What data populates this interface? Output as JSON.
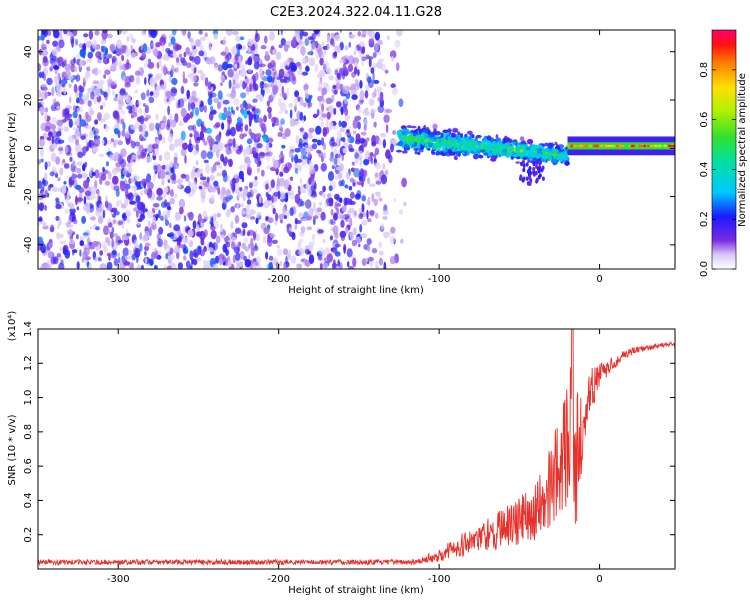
{
  "title": "C2E3.2024.322.04.11.G28",
  "colors": {
    "snr_line": "#e8302a",
    "spectrogram_base": "#7a2be0"
  },
  "chart_data": [
    {
      "type": "heatmap",
      "xlabel": "Height of straight line (km)",
      "ylabel": "Frequency (Hz)",
      "xlim": [
        -350,
        47
      ],
      "ylim": [
        -50,
        49
      ],
      "xticks": [
        -300,
        -200,
        -100,
        0
      ],
      "yticks": [
        -40,
        -20,
        0,
        20,
        40
      ],
      "colorbar": {
        "label": "Normalized spectral amplitude",
        "range": [
          0,
          0.96
        ],
        "ticks": [
          "0.0",
          "0.2",
          "0.4",
          "0.6",
          "0.8"
        ],
        "tick_values": [
          0.0,
          0.2,
          0.4,
          0.6,
          0.8
        ]
      },
      "regions": [
        {
          "x_range": [
            -350,
            -120
          ],
          "freq_range": [
            -50,
            49
          ],
          "description_amplitude": 0.1
        },
        {
          "x_range": [
            -125,
            -20
          ],
          "freq_center": [
            4,
            -3
          ],
          "freq_halfwidth": [
            6,
            4
          ],
          "amplitude": 0.35
        },
        {
          "x_range": [
            -20,
            47
          ],
          "freq_center": 1,
          "freq_halfwidth": 1.5,
          "amplitude": 0.9
        }
      ]
    },
    {
      "type": "line",
      "xlabel": "Height of straight line (km)",
      "ylabel": "SNR (10 * v/v)",
      "y_multiplier": "(x10⁴)",
      "xlim": [
        -350,
        47
      ],
      "ylim": [
        0,
        1.4
      ],
      "xticks": [
        -300,
        -200,
        -100,
        0
      ],
      "yticks": [
        0.2,
        0.4,
        0.6,
        0.8,
        1.0,
        1.2,
        1.4
      ],
      "series": [
        {
          "x": [
            -350,
            -300,
            -250,
            -200,
            -150,
            -120,
            -110,
            -100,
            -90,
            -80,
            -70,
            -60,
            -50,
            -40,
            -35,
            -30,
            -25,
            -20,
            -17,
            -15,
            -10,
            -5,
            0,
            5,
            10,
            15,
            20,
            25,
            30,
            35,
            40,
            47
          ],
          "values": [
            0.04,
            0.04,
            0.04,
            0.04,
            0.04,
            0.04,
            0.05,
            0.08,
            0.13,
            0.16,
            0.2,
            0.24,
            0.28,
            0.34,
            0.4,
            0.5,
            0.62,
            0.72,
            0.9,
            0.6,
            0.9,
            1.05,
            1.12,
            1.18,
            1.21,
            1.25,
            1.27,
            1.28,
            1.29,
            1.3,
            1.31,
            1.31
          ],
          "amplitude": [
            0.015,
            0.015,
            0.015,
            0.015,
            0.015,
            0.015,
            0.02,
            0.04,
            0.06,
            0.08,
            0.1,
            0.12,
            0.14,
            0.18,
            0.2,
            0.26,
            0.3,
            0.35,
            0.45,
            0.5,
            0.2,
            0.12,
            0.08,
            0.05,
            0.04,
            0.03,
            0.02,
            0.02,
            0.015,
            0.015,
            0.015,
            0.015
          ]
        }
      ]
    }
  ]
}
